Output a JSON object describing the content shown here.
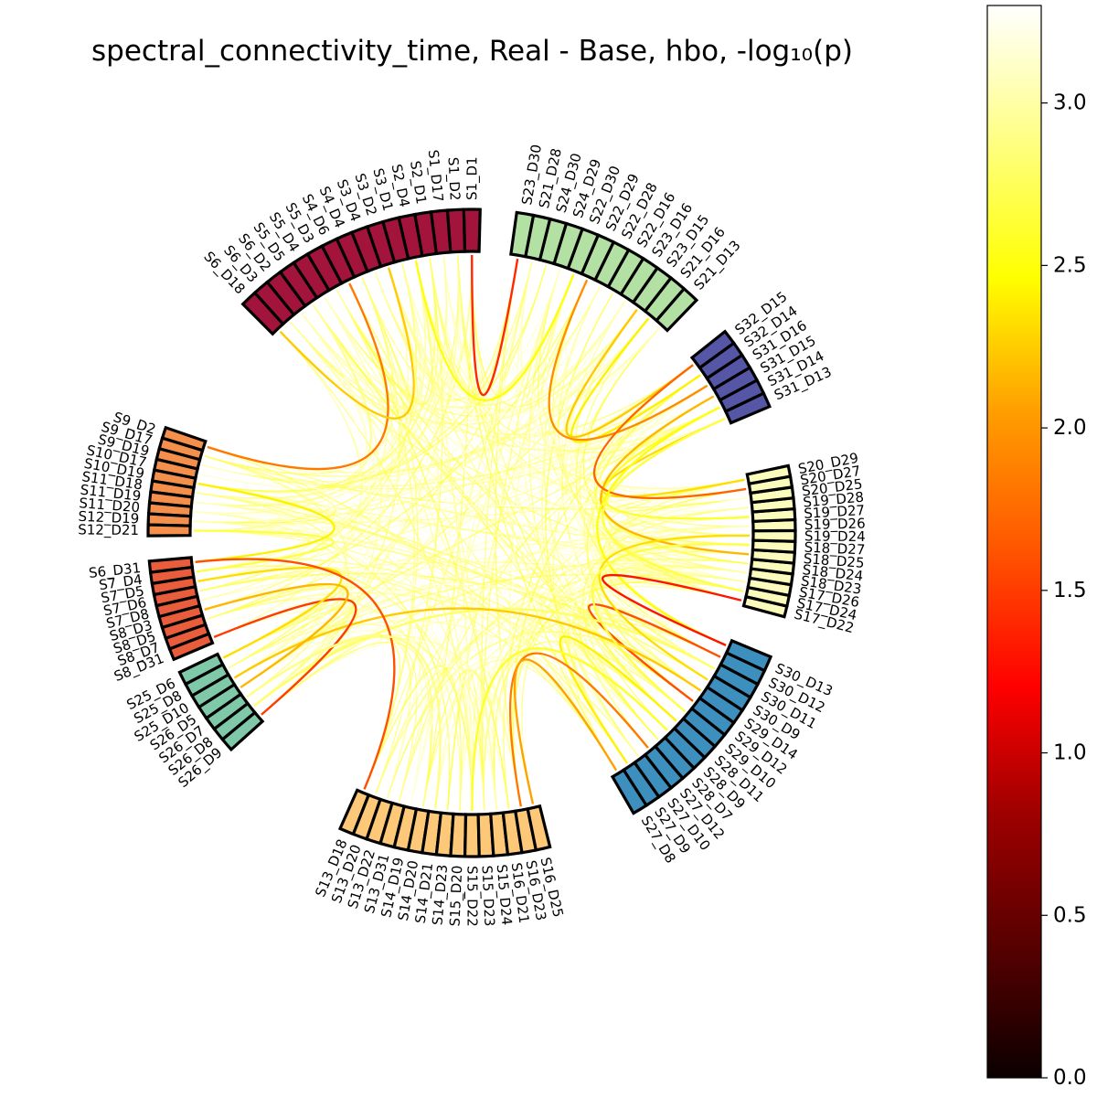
{
  "chart_data": {
    "type": "connectivity-circle",
    "title": "spectral_connectivity_time, Real - Base, hbo, -log₁₀(p)",
    "colorbar": {
      "colormap": "hot",
      "vmin": 0.0,
      "vmax": 3.3,
      "ticks": [
        "0.0",
        "0.5",
        "1.0",
        "1.5",
        "2.0",
        "2.5",
        "3.0"
      ]
    },
    "groups": [
      {
        "color": "#a3143c",
        "nodes": [
          "S1_D1",
          "S1_D2",
          "S1_D17",
          "S2_D1",
          "S2_D4",
          "S3_D1",
          "S3_D2",
          "S3_D4",
          "S4_D4",
          "S4_D6",
          "S5_D3",
          "S5_D4",
          "S5_D5",
          "S6_D2",
          "S6_D3",
          "S6_D18"
        ]
      },
      {
        "color": "#f58f4c",
        "nodes": [
          "S9_D2",
          "S9_D17",
          "S9_D19",
          "S10_D17",
          "S10_D19",
          "S11_D18",
          "S11_D19",
          "S11_D20",
          "S12_D19",
          "S12_D21"
        ]
      },
      {
        "color": "#e95d3d",
        "nodes": [
          "S6_D31",
          "S7_D4",
          "S7_D5",
          "S7_D6",
          "S7_D8",
          "S8_D3",
          "S8_D5",
          "S8_D7",
          "S8_D31"
        ]
      },
      {
        "color": "#7fc8a8",
        "nodes": [
          "S25_D6",
          "S25_D8",
          "S25_D10",
          "S26_D5",
          "S26_D7",
          "S26_D8",
          "S26_D9"
        ]
      },
      {
        "color": "#fdc878",
        "nodes": [
          "S13_D18",
          "S13_D20",
          "S13_D22",
          "S13_D31",
          "S14_D19",
          "S14_D20",
          "S14_D21",
          "S14_D23",
          "S15_D20",
          "S15_D22",
          "S15_D23",
          "S15_D24",
          "S16_D21",
          "S16_D23",
          "S16_D25"
        ]
      },
      {
        "color": "#3d8fbe",
        "nodes": [
          "S27_D8",
          "S27_D9",
          "S27_D10",
          "S27_D12",
          "S28_D7",
          "S28_D9",
          "S28_D11",
          "S29_D10",
          "S29_D12",
          "S29_D14",
          "S30_D9",
          "S30_D11",
          "S30_D12",
          "S30_D13"
        ]
      },
      {
        "color": "#fbfbbc",
        "nodes": [
          "S17_D22",
          "S17_D24",
          "S17_D26",
          "S18_D23",
          "S18_D24",
          "S18_D25",
          "S18_D27",
          "S19_D24",
          "S19_D26",
          "S19_D27",
          "S19_D28",
          "S20_D25",
          "S20_D27",
          "S20_D29"
        ]
      },
      {
        "color": "#5557a6",
        "nodes": [
          "S31_D13",
          "S31_D14",
          "S31_D15",
          "S31_D16",
          "S32_D14",
          "S32_D15"
        ]
      },
      {
        "color": "#b3e0a3",
        "nodes": [
          "S21_D13",
          "S21_D16",
          "S23_D15",
          "S23_D16",
          "S22_D16",
          "S22_D28",
          "S22_D29",
          "S22_D30",
          "S24_D29",
          "S24_D30",
          "S21_D28",
          "S23_D30"
        ]
      }
    ],
    "strong_connections": [
      [
        "S31_D13",
        "S20_D29",
        2.3
      ],
      [
        "S31_D14",
        "S19_D27",
        2.6
      ],
      [
        "S31_D15",
        "S18_D25",
        2.1
      ],
      [
        "S32_D14",
        "S21_D16",
        2.4
      ],
      [
        "S31_D16",
        "S22_D29",
        1.9
      ],
      [
        "S32_D15",
        "S23_D15",
        2.2
      ],
      [
        "S31_D13",
        "S17_D24",
        2.7
      ],
      [
        "S32_D15",
        "S20_D27",
        1.7
      ],
      [
        "S31_D14",
        "S30_D13",
        2.5
      ],
      [
        "S30_D12",
        "S29_D12",
        1.6
      ],
      [
        "S28_D11",
        "S27_D9",
        2.4
      ],
      [
        "S30_D11",
        "S26_D8",
        2.8
      ],
      [
        "S29_D14",
        "S25_D10",
        2.2
      ],
      [
        "S27_D12",
        "S16_D23",
        1.8
      ],
      [
        "S28_D9",
        "S15_D22",
        2.6
      ],
      [
        "S26_D9",
        "S8_D31",
        1.5
      ],
      [
        "S25_D6",
        "S7_D5",
        2.3
      ],
      [
        "S26_D5",
        "S8_D3",
        2.1
      ],
      [
        "S12_D21",
        "S7_D4",
        2.7
      ],
      [
        "S10_D19",
        "S6_D31",
        2.4
      ],
      [
        "S9_D2",
        "S4_D6",
        1.8
      ],
      [
        "S6_D18",
        "S3_D2",
        2.2
      ],
      [
        "S1_D1",
        "S23_D30",
        1.4
      ],
      [
        "S2_D4",
        "S22_D30",
        2.5
      ],
      [
        "S13_D18",
        "S6_D31",
        1.6
      ],
      [
        "S14_D21",
        "S26_D7",
        2.9
      ],
      [
        "S16_D25",
        "S27_D8",
        2.0
      ],
      [
        "S19_D24",
        "S30_D9",
        2.3
      ],
      [
        "S18_D27",
        "S29_D10",
        2.7
      ],
      [
        "S17_D22",
        "S30_D13",
        1.3
      ]
    ]
  }
}
